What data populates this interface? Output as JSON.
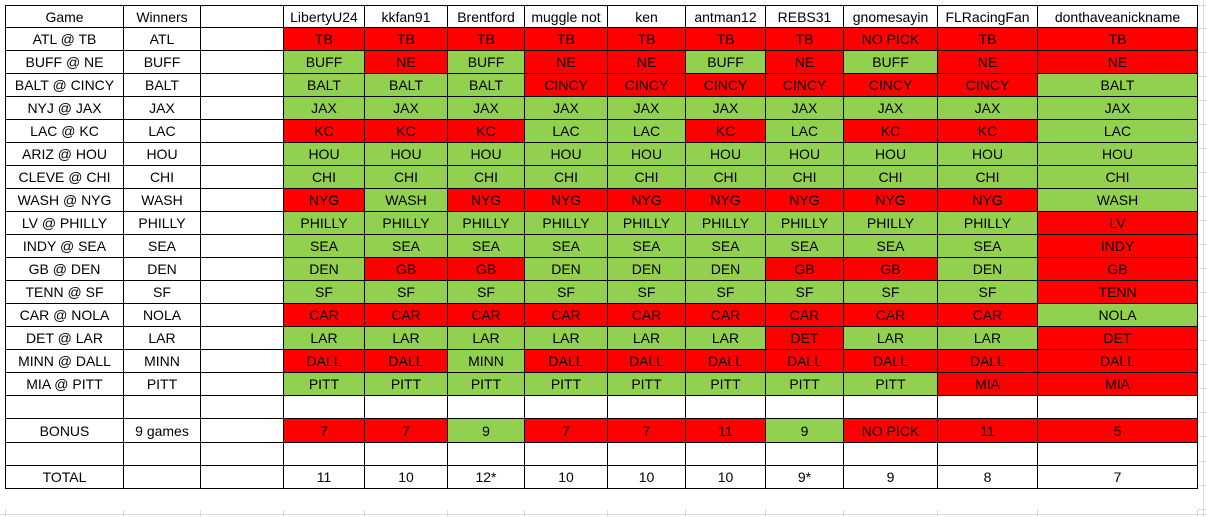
{
  "sheet": {
    "header": {
      "game_label": "Game",
      "winners_label": "Winners",
      "players": [
        "LibertyU24",
        "kkfan91",
        "Brentford",
        "muggle not",
        "ken",
        "antman12",
        "REBS31",
        "gnomesayin",
        "FLRacingFan",
        "donthaveanickname"
      ]
    },
    "games": [
      {
        "matchup": "ATL @ TB",
        "winner": "ATL",
        "picks": [
          [
            "TB",
            "red"
          ],
          [
            "TB",
            "red"
          ],
          [
            "TB",
            "red"
          ],
          [
            "TB",
            "red"
          ],
          [
            "TB",
            "red"
          ],
          [
            "TB",
            "red"
          ],
          [
            "TB",
            "red"
          ],
          [
            "NO PICK",
            "red"
          ],
          [
            "TB",
            "red"
          ],
          [
            "TB",
            "red"
          ]
        ]
      },
      {
        "matchup": "BUFF @ NE",
        "winner": "BUFF",
        "picks": [
          [
            "BUFF",
            "green"
          ],
          [
            "NE",
            "red"
          ],
          [
            "BUFF",
            "green"
          ],
          [
            "NE",
            "red"
          ],
          [
            "NE",
            "red"
          ],
          [
            "BUFF",
            "green"
          ],
          [
            "NE",
            "red"
          ],
          [
            "BUFF",
            "green"
          ],
          [
            "NE",
            "red"
          ],
          [
            "NE",
            "red"
          ]
        ]
      },
      {
        "matchup": "BALT @ CINCY",
        "winner": "BALT",
        "picks": [
          [
            "BALT",
            "green"
          ],
          [
            "BALT",
            "green"
          ],
          [
            "BALT",
            "green"
          ],
          [
            "CINCY",
            "red"
          ],
          [
            "CINCY",
            "red"
          ],
          [
            "CINCY",
            "red"
          ],
          [
            "CINCY",
            "red"
          ],
          [
            "CINCY",
            "red"
          ],
          [
            "CINCY",
            "red"
          ],
          [
            "BALT",
            "green"
          ]
        ]
      },
      {
        "matchup": "NYJ @ JAX",
        "winner": "JAX",
        "picks": [
          [
            "JAX",
            "green"
          ],
          [
            "JAX",
            "green"
          ],
          [
            "JAX",
            "green"
          ],
          [
            "JAX",
            "green"
          ],
          [
            "JAX",
            "green"
          ],
          [
            "JAX",
            "green"
          ],
          [
            "JAX",
            "green"
          ],
          [
            "JAX",
            "green"
          ],
          [
            "JAX",
            "green"
          ],
          [
            "JAX",
            "green"
          ]
        ]
      },
      {
        "matchup": "LAC @ KC",
        "winner": "LAC",
        "picks": [
          [
            "KC",
            "red"
          ],
          [
            "KC",
            "red"
          ],
          [
            "KC",
            "red"
          ],
          [
            "LAC",
            "green"
          ],
          [
            "LAC",
            "green"
          ],
          [
            "KC",
            "red"
          ],
          [
            "LAC",
            "green"
          ],
          [
            "KC",
            "red"
          ],
          [
            "KC",
            "red"
          ],
          [
            "LAC",
            "green"
          ]
        ]
      },
      {
        "matchup": "ARIZ @ HOU",
        "winner": "HOU",
        "picks": [
          [
            "HOU",
            "green"
          ],
          [
            "HOU",
            "green"
          ],
          [
            "HOU",
            "green"
          ],
          [
            "HOU",
            "green"
          ],
          [
            "HOU",
            "green"
          ],
          [
            "HOU",
            "green"
          ],
          [
            "HOU",
            "green"
          ],
          [
            "HOU",
            "green"
          ],
          [
            "HOU",
            "green"
          ],
          [
            "HOU",
            "green"
          ]
        ]
      },
      {
        "matchup": "CLEVE @ CHI",
        "winner": "CHI",
        "picks": [
          [
            "CHI",
            "green"
          ],
          [
            "CHI",
            "green"
          ],
          [
            "CHI",
            "green"
          ],
          [
            "CHI",
            "green"
          ],
          [
            "CHI",
            "green"
          ],
          [
            "CHI",
            "green"
          ],
          [
            "CHI",
            "green"
          ],
          [
            "CHI",
            "green"
          ],
          [
            "CHI",
            "green"
          ],
          [
            "CHI",
            "green"
          ]
        ]
      },
      {
        "matchup": "WASH @ NYG",
        "winner": "WASH",
        "picks": [
          [
            "NYG",
            "red"
          ],
          [
            "WASH",
            "green"
          ],
          [
            "NYG",
            "red"
          ],
          [
            "NYG",
            "red"
          ],
          [
            "NYG",
            "red"
          ],
          [
            "NYG",
            "red"
          ],
          [
            "NYG",
            "red"
          ],
          [
            "NYG",
            "red"
          ],
          [
            "NYG",
            "red"
          ],
          [
            "WASH",
            "green"
          ]
        ]
      },
      {
        "matchup": "LV @ PHILLY",
        "winner": "PHILLY",
        "picks": [
          [
            "PHILLY",
            "green"
          ],
          [
            "PHILLY",
            "green"
          ],
          [
            "PHILLY",
            "green"
          ],
          [
            "PHILLY",
            "green"
          ],
          [
            "PHILLY",
            "green"
          ],
          [
            "PHILLY",
            "green"
          ],
          [
            "PHILLY",
            "green"
          ],
          [
            "PHILLY",
            "green"
          ],
          [
            "PHILLY",
            "green"
          ],
          [
            "LV",
            "red"
          ]
        ]
      },
      {
        "matchup": "INDY @ SEA",
        "winner": "SEA",
        "picks": [
          [
            "SEA",
            "green"
          ],
          [
            "SEA",
            "green"
          ],
          [
            "SEA",
            "green"
          ],
          [
            "SEA",
            "green"
          ],
          [
            "SEA",
            "green"
          ],
          [
            "SEA",
            "green"
          ],
          [
            "SEA",
            "green"
          ],
          [
            "SEA",
            "green"
          ],
          [
            "SEA",
            "green"
          ],
          [
            "INDY",
            "red"
          ]
        ]
      },
      {
        "matchup": "GB @ DEN",
        "winner": "DEN",
        "picks": [
          [
            "DEN",
            "green"
          ],
          [
            "GB",
            "red"
          ],
          [
            "GB",
            "red"
          ],
          [
            "DEN",
            "green"
          ],
          [
            "DEN",
            "green"
          ],
          [
            "DEN",
            "green"
          ],
          [
            "GB",
            "red"
          ],
          [
            "GB",
            "red"
          ],
          [
            "DEN",
            "green"
          ],
          [
            "GB",
            "red"
          ]
        ]
      },
      {
        "matchup": "TENN @ SF",
        "winner": "SF",
        "picks": [
          [
            "SF",
            "green"
          ],
          [
            "SF",
            "green"
          ],
          [
            "SF",
            "green"
          ],
          [
            "SF",
            "green"
          ],
          [
            "SF",
            "green"
          ],
          [
            "SF",
            "green"
          ],
          [
            "SF",
            "green"
          ],
          [
            "SF",
            "green"
          ],
          [
            "SF",
            "green"
          ],
          [
            "TENN",
            "red"
          ]
        ]
      },
      {
        "matchup": "CAR @ NOLA",
        "winner": "NOLA",
        "picks": [
          [
            "CAR",
            "red"
          ],
          [
            "CAR",
            "red"
          ],
          [
            "CAR",
            "red"
          ],
          [
            "CAR",
            "red"
          ],
          [
            "CAR",
            "red"
          ],
          [
            "CAR",
            "red"
          ],
          [
            "CAR",
            "red"
          ],
          [
            "CAR",
            "red"
          ],
          [
            "CAR",
            "red"
          ],
          [
            "NOLA",
            "green"
          ]
        ]
      },
      {
        "matchup": "DET @ LAR",
        "winner": "LAR",
        "picks": [
          [
            "LAR",
            "green"
          ],
          [
            "LAR",
            "green"
          ],
          [
            "LAR",
            "green"
          ],
          [
            "LAR",
            "green"
          ],
          [
            "LAR",
            "green"
          ],
          [
            "LAR",
            "green"
          ],
          [
            "DET",
            "red"
          ],
          [
            "LAR",
            "green"
          ],
          [
            "LAR",
            "green"
          ],
          [
            "DET",
            "red"
          ]
        ]
      },
      {
        "matchup": "MINN @ DALL",
        "winner": "MINN",
        "picks": [
          [
            "DALL",
            "red"
          ],
          [
            "DALL",
            "red"
          ],
          [
            "MINN",
            "green"
          ],
          [
            "DALL",
            "red"
          ],
          [
            "DALL",
            "red"
          ],
          [
            "DALL",
            "red"
          ],
          [
            "DALL",
            "red"
          ],
          [
            "DALL",
            "red"
          ],
          [
            "DALL",
            "red"
          ],
          [
            "DALL",
            "red"
          ]
        ]
      },
      {
        "matchup": "MIA @ PITT",
        "winner": "PITT",
        "picks": [
          [
            "PITT",
            "green"
          ],
          [
            "PITT",
            "green"
          ],
          [
            "PITT",
            "green"
          ],
          [
            "PITT",
            "green"
          ],
          [
            "PITT",
            "green"
          ],
          [
            "PITT",
            "green"
          ],
          [
            "PITT",
            "green"
          ],
          [
            "PITT",
            "green"
          ],
          [
            "MIA",
            "red"
          ],
          [
            "MIA",
            "red"
          ]
        ]
      }
    ],
    "bonus_row": {
      "label": "BONUS",
      "note": "9 games",
      "picks": [
        [
          "7",
          "red"
        ],
        [
          "7",
          "red"
        ],
        [
          "9",
          "green"
        ],
        [
          "7",
          "red"
        ],
        [
          "7",
          "red"
        ],
        [
          "11",
          "red"
        ],
        [
          "9",
          "green"
        ],
        [
          "NO PICK",
          "red"
        ],
        [
          "11",
          "red"
        ],
        [
          "5",
          "red"
        ]
      ]
    },
    "total_row": {
      "label": "TOTAL",
      "values": [
        "11",
        "10",
        "12*",
        "10",
        "10",
        "10",
        "9*",
        "9",
        "8",
        "7"
      ]
    }
  },
  "colors": {
    "correct_green": "#92D050",
    "incorrect_red": "#FF0000",
    "cell_border": "#000000",
    "gridline": "#D9D9D9"
  }
}
